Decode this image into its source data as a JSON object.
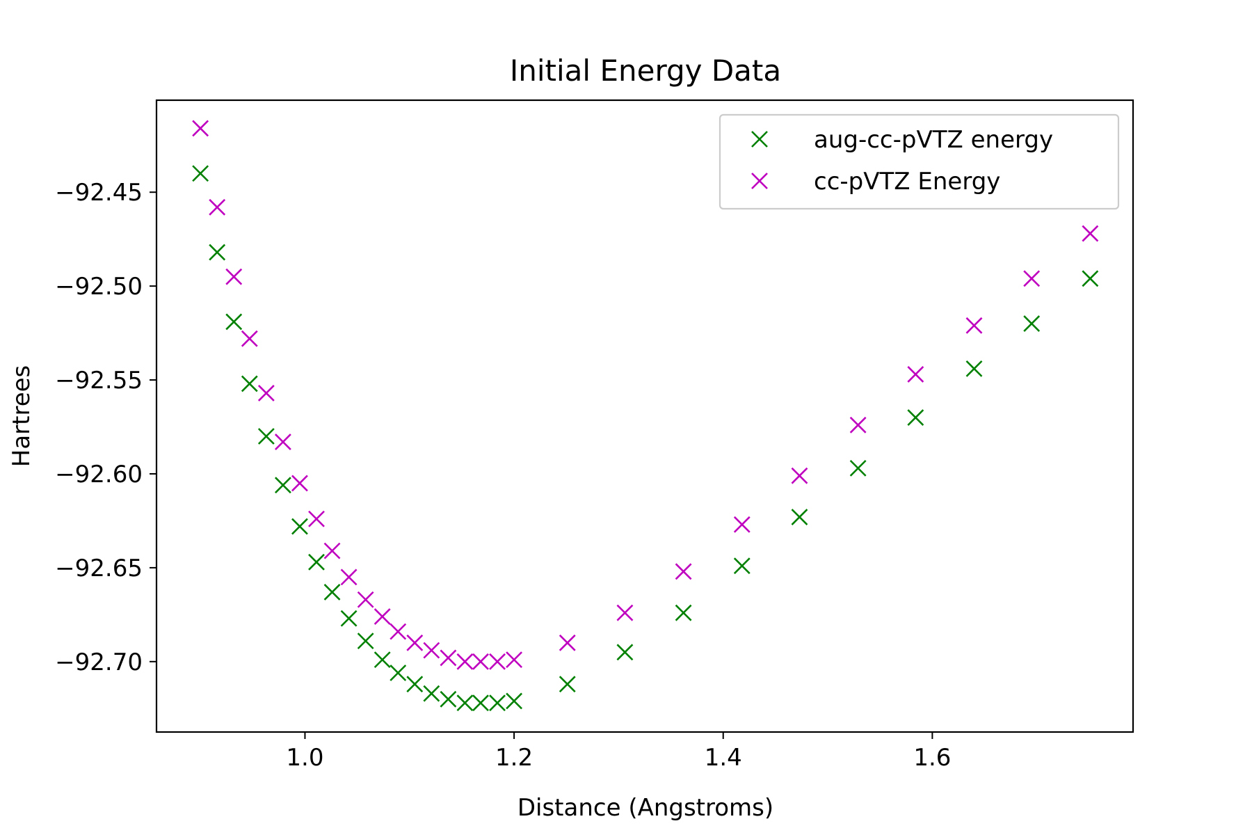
{
  "chart_data": {
    "type": "scatter",
    "title": "Initial Energy Data",
    "xlabel": "Distance (Angstroms)",
    "ylabel": "Hartrees",
    "xlim": [
      0.858,
      1.792
    ],
    "ylim": [
      -92.7375,
      -92.401
    ],
    "xticks": [
      {
        "value": 1.0,
        "label": "1.0"
      },
      {
        "value": 1.2,
        "label": "1.2"
      },
      {
        "value": 1.4,
        "label": "1.4"
      },
      {
        "value": 1.6,
        "label": "1.6"
      }
    ],
    "yticks": [
      {
        "value": -92.45,
        "label": "−92.45"
      },
      {
        "value": -92.5,
        "label": "−92.50"
      },
      {
        "value": -92.55,
        "label": "−92.55"
      },
      {
        "value": -92.6,
        "label": "−92.60"
      },
      {
        "value": -92.65,
        "label": "−92.65"
      },
      {
        "value": -92.7,
        "label": "−92.70"
      }
    ],
    "grid": false,
    "legend_position": "top-right",
    "series": [
      {
        "name": "aug-cc-pVTZ energy",
        "color": "#008000",
        "marker": "x",
        "x": [
          0.9,
          0.916,
          0.932,
          0.947,
          0.963,
          0.979,
          0.995,
          1.011,
          1.026,
          1.042,
          1.058,
          1.074,
          1.089,
          1.105,
          1.121,
          1.137,
          1.153,
          1.168,
          1.184,
          1.2,
          1.251,
          1.306,
          1.362,
          1.418,
          1.473,
          1.529,
          1.584,
          1.64,
          1.695,
          1.751
        ],
        "y": [
          -92.44,
          -92.482,
          -92.519,
          -92.552,
          -92.58,
          -92.606,
          -92.628,
          -92.647,
          -92.663,
          -92.677,
          -92.689,
          -92.699,
          -92.706,
          -92.712,
          -92.717,
          -92.72,
          -92.722,
          -92.722,
          -92.722,
          -92.721,
          -92.712,
          -92.695,
          -92.674,
          -92.649,
          -92.623,
          -92.597,
          -92.57,
          -92.544,
          -92.52,
          -92.496
        ]
      },
      {
        "name": "cc-pVTZ Energy",
        "color": "#bf00bf",
        "marker": "x",
        "x": [
          0.9,
          0.916,
          0.932,
          0.947,
          0.963,
          0.979,
          0.995,
          1.011,
          1.026,
          1.042,
          1.058,
          1.074,
          1.089,
          1.105,
          1.121,
          1.137,
          1.153,
          1.168,
          1.184,
          1.2,
          1.251,
          1.306,
          1.362,
          1.418,
          1.473,
          1.529,
          1.584,
          1.64,
          1.695,
          1.751
        ],
        "y": [
          -92.416,
          -92.458,
          -92.495,
          -92.528,
          -92.557,
          -92.583,
          -92.605,
          -92.624,
          -92.641,
          -92.655,
          -92.667,
          -92.676,
          -92.684,
          -92.69,
          -92.694,
          -92.698,
          -92.7,
          -92.7,
          -92.7,
          -92.699,
          -92.69,
          -92.674,
          -92.652,
          -92.627,
          -92.601,
          -92.574,
          -92.547,
          -92.521,
          -92.496,
          -92.472
        ]
      }
    ]
  }
}
